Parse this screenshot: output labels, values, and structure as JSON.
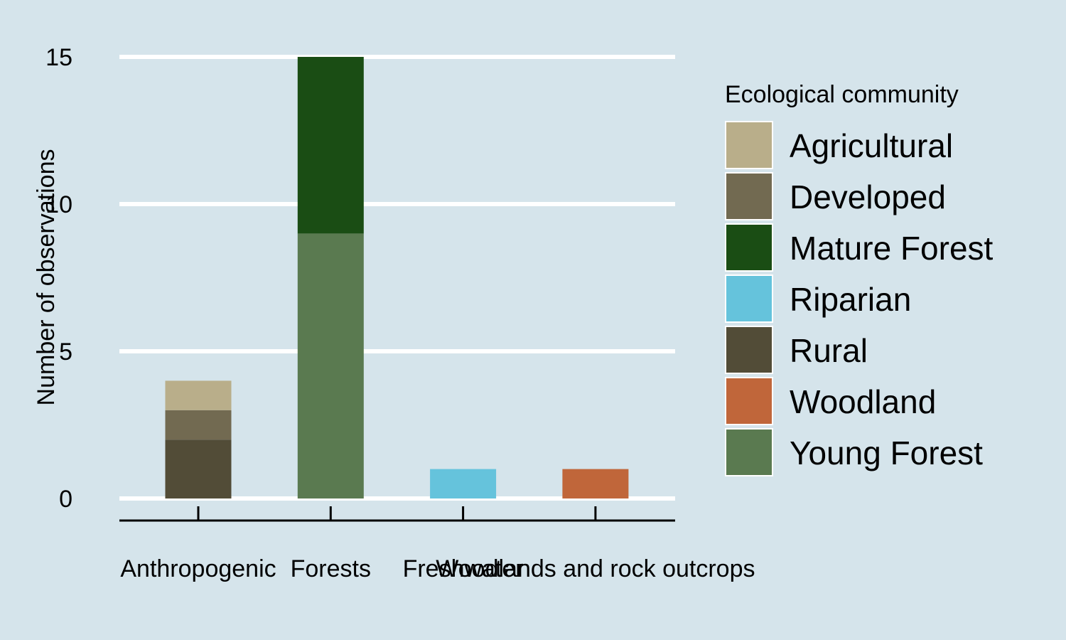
{
  "chart_data": {
    "type": "bar",
    "stacked": true,
    "categories": [
      "Anthropogenic",
      "Forests",
      "Freshwater",
      "Woodlands and rock outcrops"
    ],
    "series": [
      {
        "name": "Agricultural",
        "color": "#b9ae8a",
        "values": [
          1,
          0,
          0,
          0
        ]
      },
      {
        "name": "Developed",
        "color": "#726a51",
        "values": [
          1,
          0,
          0,
          0
        ]
      },
      {
        "name": "Mature Forest",
        "color": "#1a4d14",
        "values": [
          0,
          6,
          0,
          0
        ]
      },
      {
        "name": "Riparian",
        "color": "#65c3dc",
        "values": [
          0,
          0,
          1,
          0
        ]
      },
      {
        "name": "Rural",
        "color": "#524c37",
        "values": [
          2,
          0,
          0,
          0
        ]
      },
      {
        "name": "Woodland",
        "color": "#c0663a",
        "values": [
          0,
          0,
          0,
          1
        ]
      },
      {
        "name": "Young Forest",
        "color": "#5a7a50",
        "values": [
          0,
          9,
          0,
          0
        ]
      }
    ],
    "stack_order": [
      "Rural",
      "Developed",
      "Agricultural",
      "Young Forest",
      "Mature Forest",
      "Riparian",
      "Woodland"
    ],
    "ylabel": "Number of observations",
    "xlabel": "",
    "ylim": [
      0,
      15
    ],
    "yticks": [
      0,
      5,
      10,
      15
    ],
    "legend": {
      "title": "Ecological community",
      "position": "right"
    },
    "grid": "horizontal",
    "background": "#d5e4eb"
  }
}
